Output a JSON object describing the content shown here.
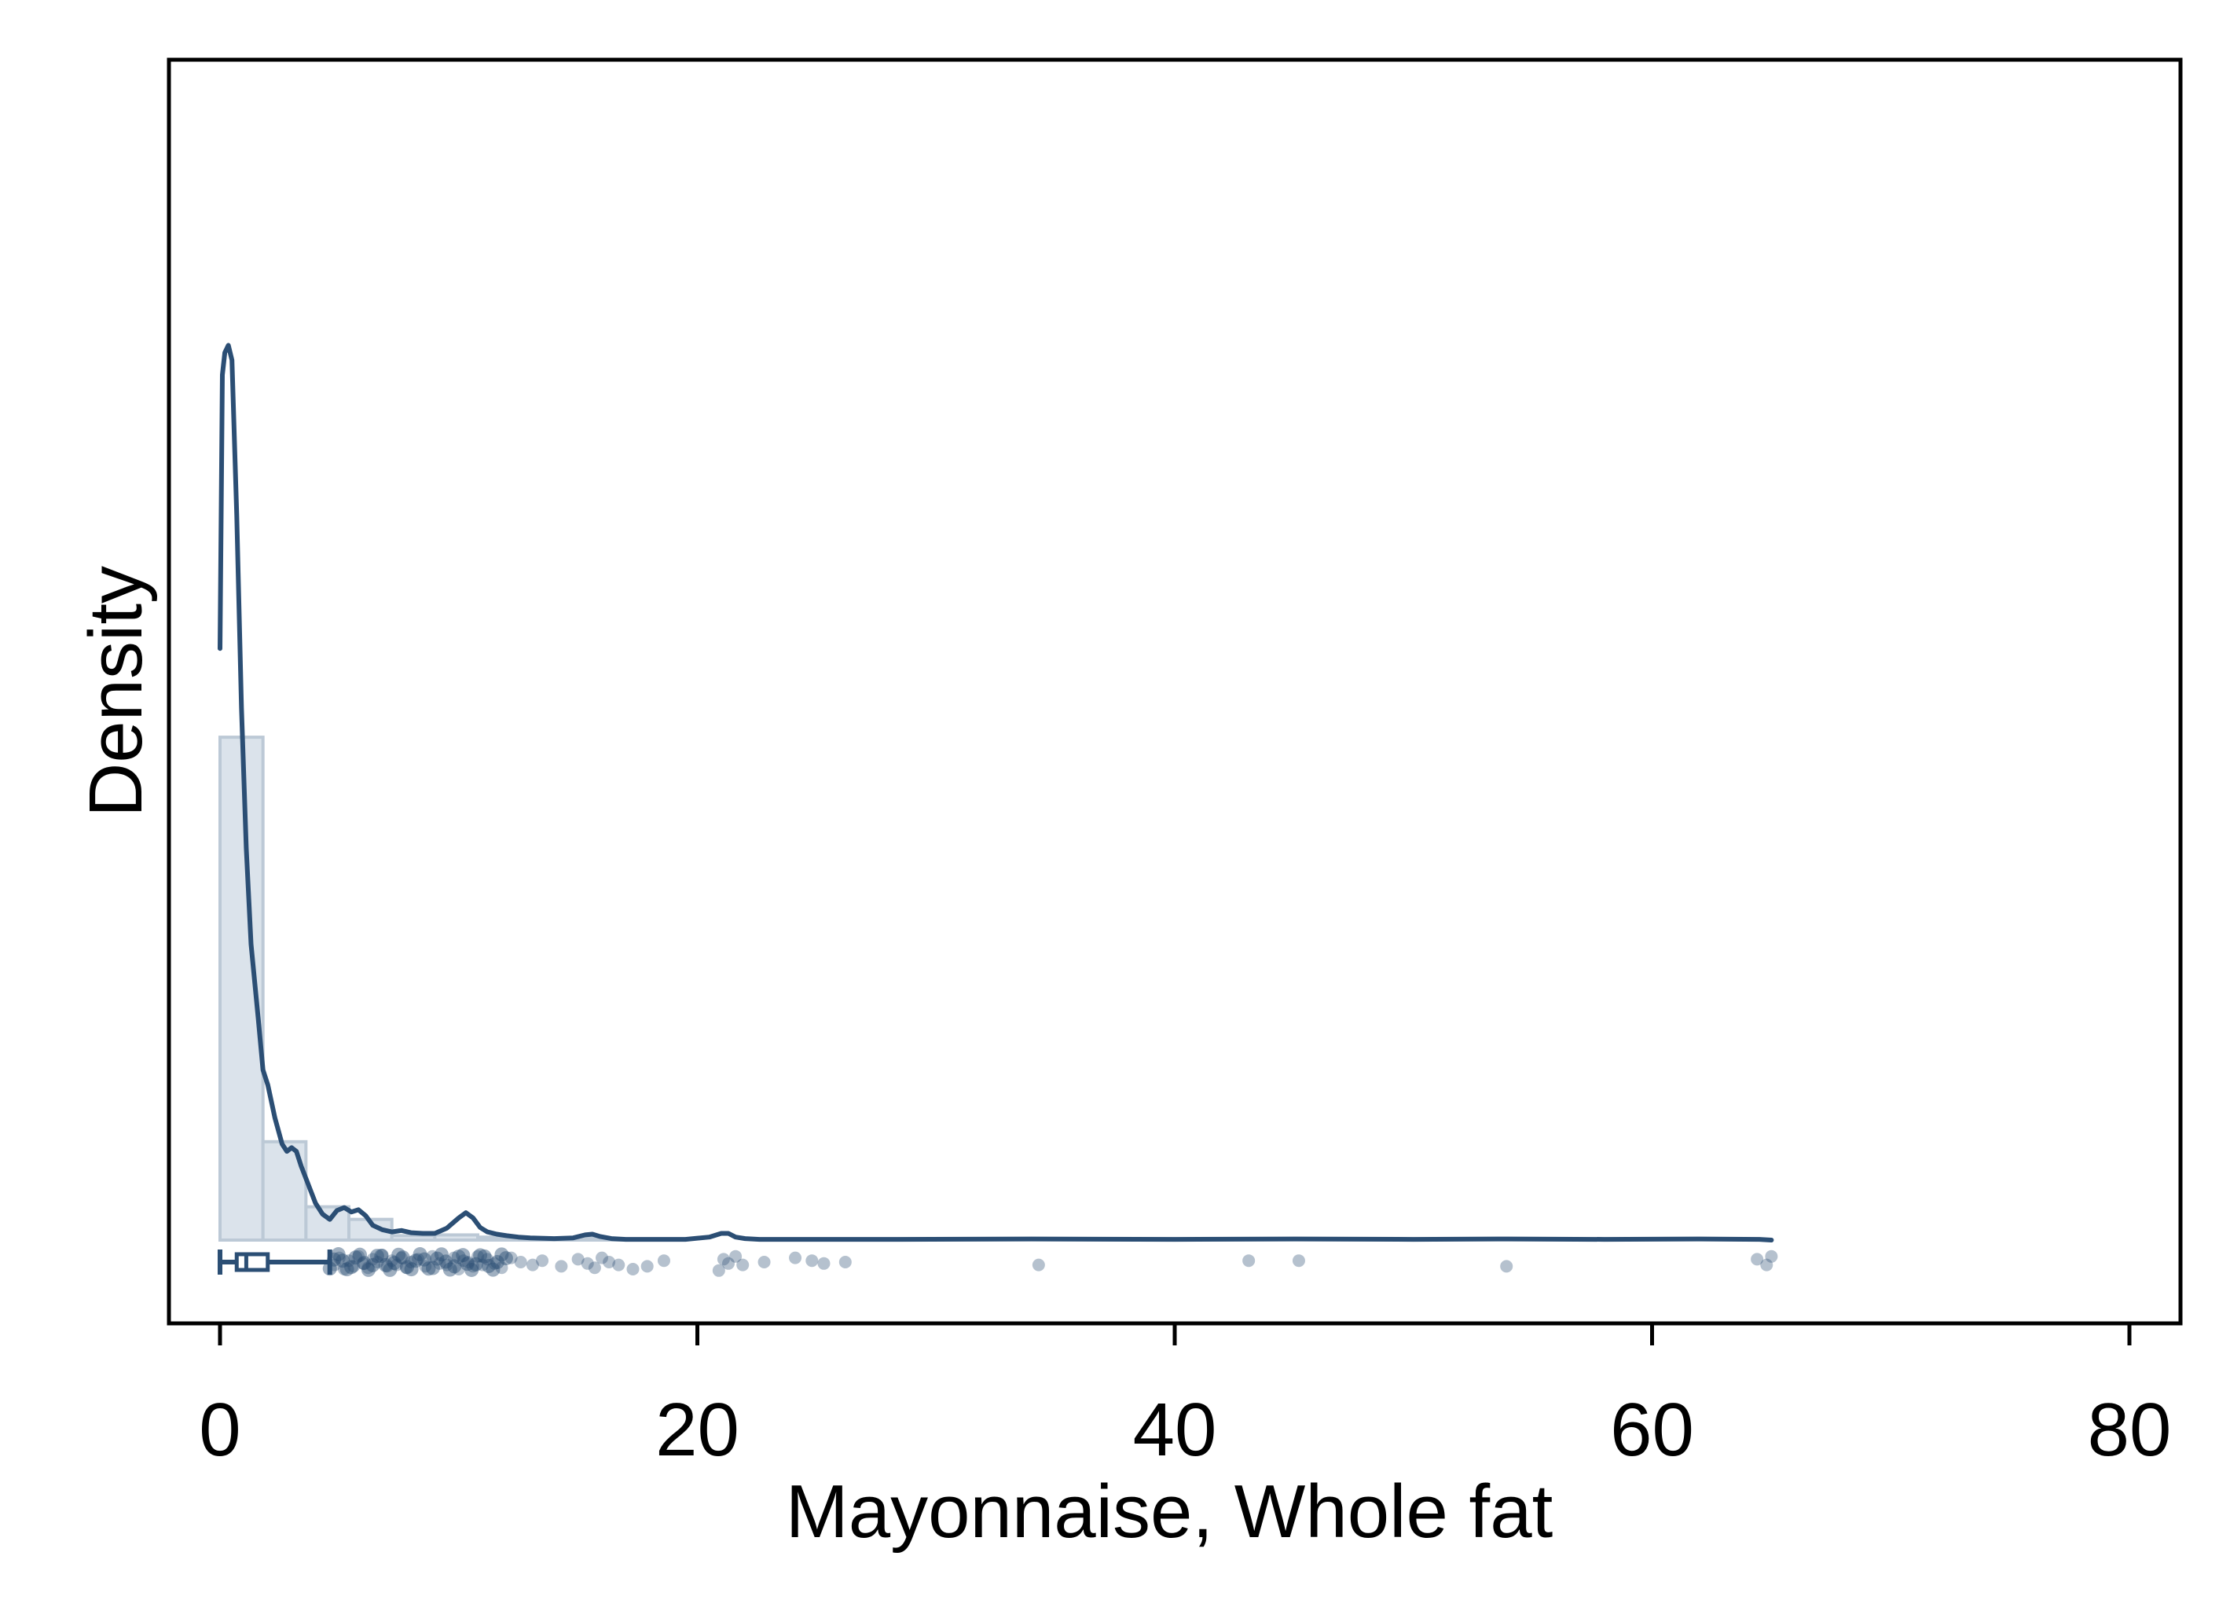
{
  "chart_data": {
    "type": "histogram",
    "xlabel": "Mayonnaise, Whole fat",
    "ylabel": "Density",
    "xlim": [
      -2.2,
      82.2
    ],
    "x_ticks": [
      "0",
      "20",
      "40",
      "60",
      "80"
    ],
    "x_tick_values": [
      0,
      20,
      40,
      60,
      80
    ],
    "y_ticks_shown": false,
    "grid": false,
    "legend": "none",
    "colors": {
      "kde_line": "#2b4e74",
      "hist_fill": "#dbe3eb",
      "hist_edge": "#bcc9d6",
      "points": "#2b4e74",
      "frame": "#000000"
    },
    "histogram": {
      "bins": [
        {
          "x0": 0,
          "x1": 1.8,
          "density": 0.68
        },
        {
          "x0": 1.8,
          "x1": 3.6,
          "density": 0.133
        },
        {
          "x0": 3.6,
          "x1": 5.4,
          "density": 0.045
        },
        {
          "x0": 5.4,
          "x1": 7.2,
          "density": 0.028
        },
        {
          "x0": 7.2,
          "x1": 9.0,
          "density": 0.006
        },
        {
          "x0": 9.0,
          "x1": 10.8,
          "density": 0.007
        },
        {
          "x0": 10.8,
          "x1": 12.6,
          "density": 0.004
        },
        {
          "x0": 12.6,
          "x1": 14.4,
          "density": 0.002
        },
        {
          "x0": 14.4,
          "x1": 16.2,
          "density": 0.003
        },
        {
          "x0": 16.2,
          "x1": 18.0,
          "density": 0.001
        }
      ]
    },
    "kde": {
      "x": [
        0,
        0.1,
        0.2,
        0.35,
        0.5,
        0.7,
        0.9,
        1.1,
        1.3,
        1.6,
        1.8,
        2.0,
        2.3,
        2.6,
        2.8,
        3.0,
        3.2,
        3.4,
        3.7,
        4.0,
        4.3,
        4.6,
        4.9,
        5.2,
        5.5,
        5.8,
        6.1,
        6.4,
        6.8,
        7.2,
        7.6,
        8.0,
        8.5,
        9.0,
        9.5,
        10.0,
        10.3,
        10.6,
        10.9,
        11.2,
        11.6,
        12.0,
        12.5,
        13.0,
        14.0,
        14.8,
        15.3,
        15.6,
        15.9,
        16.4,
        17.0,
        18.0,
        19.5,
        20.5,
        21.0,
        21.3,
        21.6,
        22.0,
        22.6,
        24.0,
        28.0,
        34.0,
        40.0,
        45.0,
        50.0,
        54.0,
        58.0,
        62.0,
        64.5,
        65.0
      ],
      "y": [
        0.8,
        1.17,
        1.2,
        1.21,
        1.19,
        0.98,
        0.72,
        0.53,
        0.4,
        0.3,
        0.23,
        0.21,
        0.165,
        0.13,
        0.12,
        0.125,
        0.12,
        0.1,
        0.075,
        0.05,
        0.035,
        0.028,
        0.04,
        0.044,
        0.038,
        0.041,
        0.033,
        0.02,
        0.014,
        0.011,
        0.013,
        0.01,
        0.009,
        0.009,
        0.016,
        0.03,
        0.037,
        0.03,
        0.017,
        0.011,
        0.008,
        0.006,
        0.004,
        0.003,
        0.002,
        0.003,
        0.007,
        0.008,
        0.005,
        0.002,
        0.001,
        0.001,
        0.001,
        0.004,
        0.009,
        0.009,
        0.004,
        0.002,
        0.001,
        0.001,
        0.001,
        0.0015,
        0.001,
        0.0015,
        0.001,
        0.0015,
        0.001,
        0.0015,
        0.001,
        0.0
      ]
    },
    "boxplot": {
      "whisker_low": 0,
      "q1": 0.7,
      "median": 1.1,
      "q3": 2.0,
      "whisker_high": 4.6
    },
    "points": {
      "note": "observed values plotted as jittered rug",
      "x": [
        4.8,
        5.0,
        5.2,
        5.4,
        5.6,
        5.8,
        6.0,
        6.2,
        6.4,
        6.6,
        6.8,
        7.0,
        7.2,
        7.4,
        7.6,
        7.8,
        8.0,
        8.3,
        8.6,
        8.9,
        9.2,
        9.5,
        9.8,
        10.0,
        10.2,
        10.4,
        10.6,
        10.8,
        11.0,
        11.2,
        11.5,
        11.8,
        12.2,
        12.6,
        13.1,
        13.5,
        14.3,
        15.0,
        15.4,
        15.7,
        16.0,
        16.3,
        16.7,
        17.3,
        17.9,
        18.6,
        20.9,
        21.1,
        21.3,
        21.6,
        21.9,
        22.8,
        24.1,
        24.8,
        25.3,
        26.2,
        34.3,
        43.1,
        45.2,
        53.9,
        64.4,
        64.8,
        65.0
      ],
      "y_jitter": [
        0.2,
        -0.3,
        0.5,
        -0.1,
        0.3,
        -0.4,
        0.1,
        0.4,
        -0.2,
        0.0,
        -0.5,
        0.3,
        -0.1,
        0.2,
        -0.3,
        0.4,
        0.0,
        -0.2,
        0.3,
        -0.4,
        0.1,
        0.2,
        -0.3,
        0.5,
        -0.1,
        0.0,
        0.3,
        -0.4,
        0.2,
        -0.2,
        0.1,
        0.4,
        -0.3,
        0.0,
        0.2,
        -0.1,
        0.3,
        -0.2,
        0.1,
        0.4,
        -0.3,
        0.0,
        0.2,
        0.5,
        0.3,
        -0.1,
        0.6,
        -0.2,
        0.1,
        -0.4,
        0.2,
        0.0,
        -0.3,
        -0.1,
        0.1,
        0.0,
        0.2,
        -0.1,
        -0.1,
        0.3,
        -0.2,
        0.2,
        -0.4
      ]
    }
  }
}
